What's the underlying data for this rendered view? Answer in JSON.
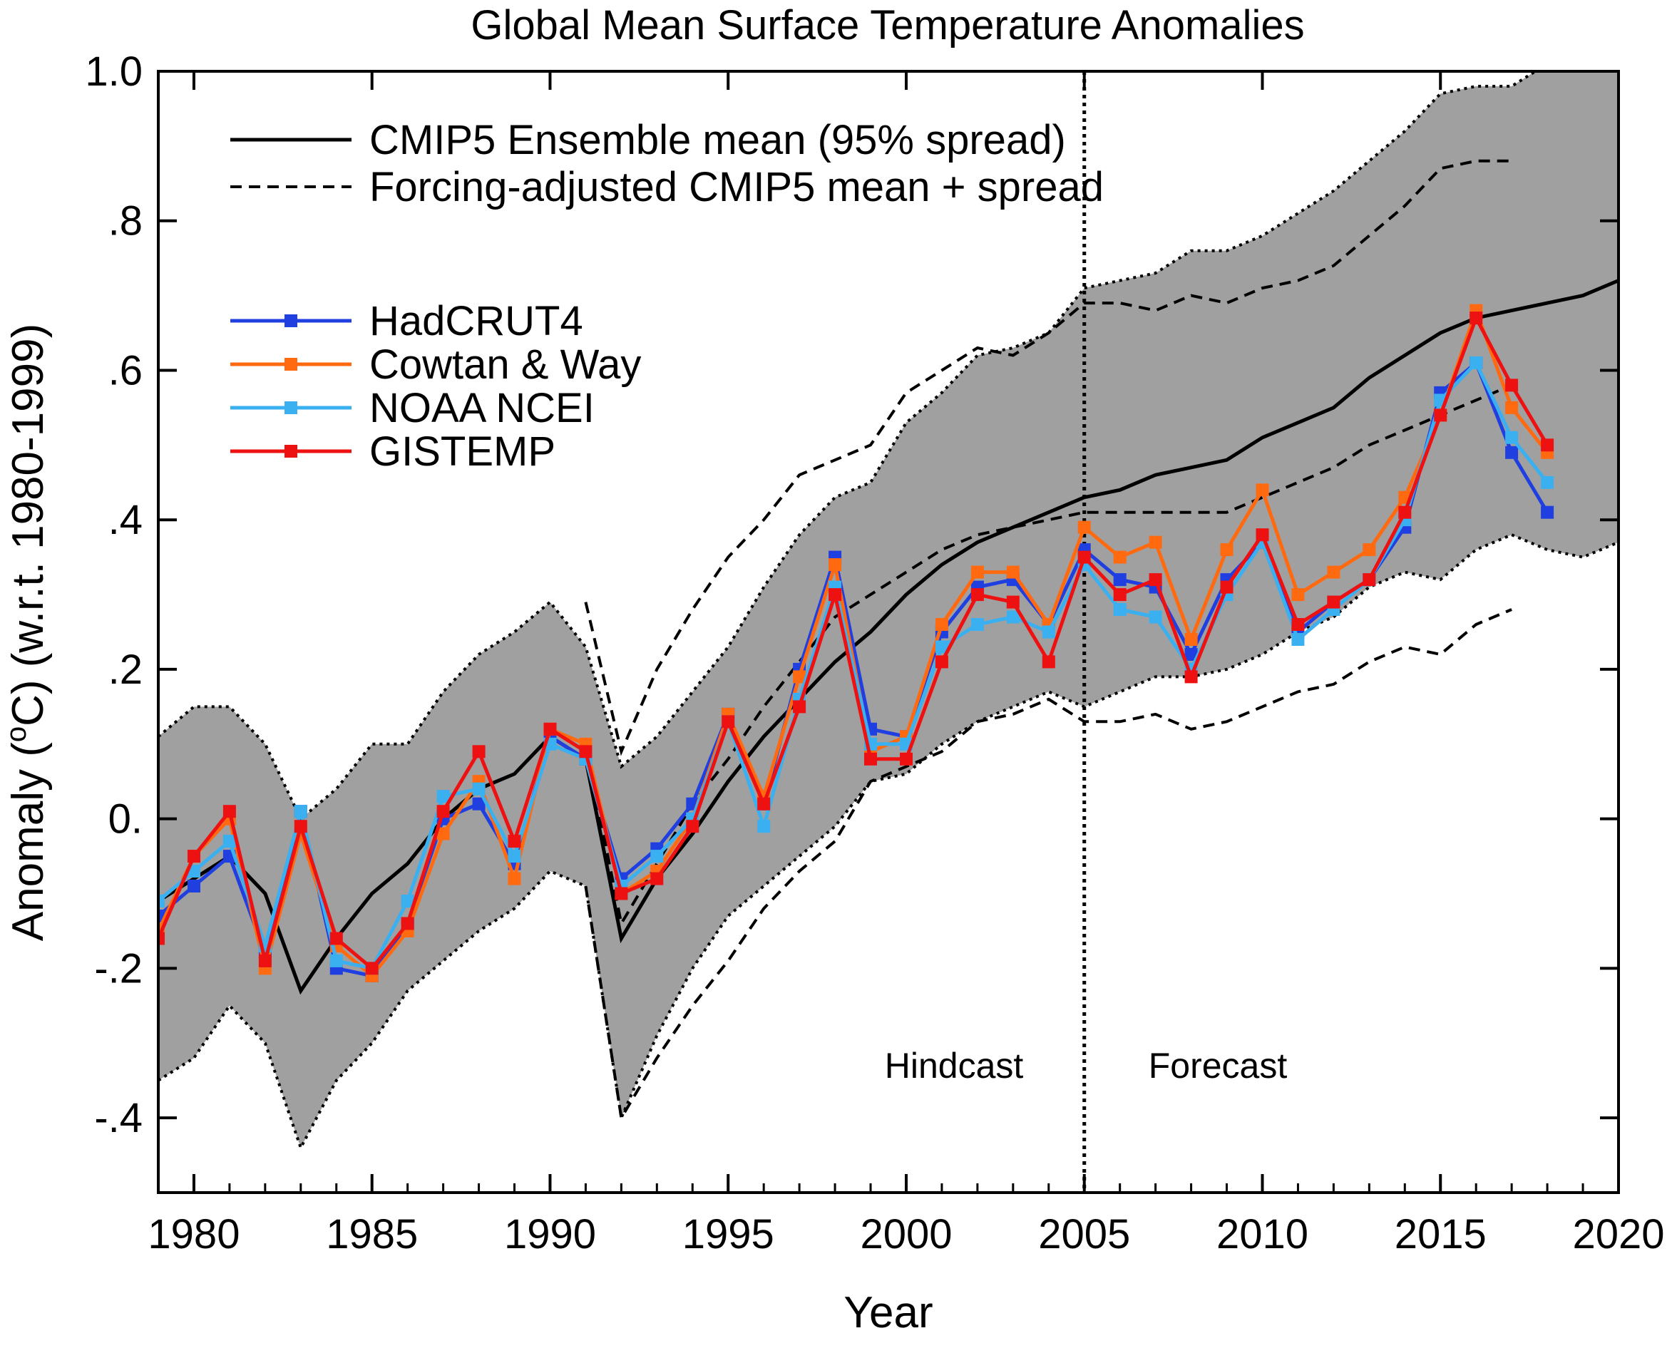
{
  "chart_data": {
    "type": "line",
    "title": "Global Mean Surface Temperature Anomalies",
    "xlabel": "Year",
    "ylabel_main": "Anomaly (",
    "ylabel_sup": "o",
    "ylabel_rest": "C) (w.r.t. 1980-1999)",
    "xlim": [
      1979,
      2020
    ],
    "ylim": [
      -0.5,
      1.0
    ],
    "xticks": [
      1980,
      1985,
      1990,
      1995,
      2000,
      2005,
      2010,
      2015,
      2020
    ],
    "xtick_labels": [
      "1980",
      "1985",
      "1990",
      "1995",
      "2000",
      "2005",
      "2010",
      "2015",
      "2020"
    ],
    "yticks": [
      -0.4,
      -0.2,
      0.0,
      0.2,
      0.4,
      0.6,
      0.8,
      1.0
    ],
    "ytick_labels": [
      "-.4",
      "-.2",
      "0.",
      ".2",
      ".4",
      ".6",
      ".8",
      "1.0"
    ],
    "grid": false,
    "legend_position": "top-left",
    "legend_lines": [
      {
        "label": "CMIP5 Ensemble mean (95% spread)",
        "style": "solid",
        "color": "#000000"
      },
      {
        "label": "Forcing-adjusted CMIP5 mean + spread",
        "style": "dashed",
        "color": "#000000"
      }
    ],
    "annotations": {
      "divider_year": 2005,
      "left_text": "Hindcast",
      "right_text": "Forecast",
      "text_y": -0.33
    },
    "cmip5_band": {
      "fill": "#a0a0a0",
      "x": [
        1979,
        1980,
        1981,
        1982,
        1983,
        1984,
        1985,
        1986,
        1987,
        1988,
        1989,
        1990,
        1991,
        1992,
        1993,
        1994,
        1995,
        1996,
        1997,
        1998,
        1999,
        2000,
        2001,
        2002,
        2003,
        2004,
        2005,
        2006,
        2007,
        2008,
        2009,
        2010,
        2011,
        2012,
        2013,
        2014,
        2015,
        2016,
        2017,
        2018,
        2019,
        2020
      ],
      "upper": [
        0.11,
        0.15,
        0.15,
        0.1,
        0.0,
        0.04,
        0.1,
        0.1,
        0.17,
        0.22,
        0.25,
        0.29,
        0.23,
        0.07,
        0.11,
        0.17,
        0.23,
        0.31,
        0.38,
        0.43,
        0.45,
        0.53,
        0.57,
        0.62,
        0.63,
        0.65,
        0.71,
        0.72,
        0.73,
        0.76,
        0.76,
        0.78,
        0.81,
        0.84,
        0.88,
        0.92,
        0.97,
        0.98,
        0.98,
        1.01,
        1.03,
        1.05
      ],
      "lower": [
        -0.35,
        -0.32,
        -0.25,
        -0.3,
        -0.44,
        -0.35,
        -0.3,
        -0.23,
        -0.19,
        -0.15,
        -0.12,
        -0.07,
        -0.09,
        -0.4,
        -0.29,
        -0.2,
        -0.13,
        -0.09,
        -0.05,
        -0.01,
        0.05,
        0.06,
        0.1,
        0.13,
        0.15,
        0.17,
        0.15,
        0.17,
        0.19,
        0.19,
        0.2,
        0.22,
        0.25,
        0.27,
        0.31,
        0.33,
        0.32,
        0.36,
        0.38,
        0.36,
        0.35,
        0.37
      ]
    },
    "cmip5_mean": {
      "x": [
        1979,
        1980,
        1981,
        1982,
        1983,
        1984,
        1985,
        1986,
        1987,
        1988,
        1989,
        1990,
        1991,
        1992,
        1993,
        1994,
        1995,
        1996,
        1997,
        1998,
        1999,
        2000,
        2001,
        2002,
        2003,
        2004,
        2005,
        2006,
        2007,
        2008,
        2009,
        2010,
        2011,
        2012,
        2013,
        2014,
        2015,
        2016,
        2017,
        2018,
        2019,
        2020
      ],
      "y": [
        -0.11,
        -0.08,
        -0.05,
        -0.1,
        -0.23,
        -0.16,
        -0.1,
        -0.06,
        0.0,
        0.04,
        0.06,
        0.11,
        0.08,
        -0.16,
        -0.08,
        -0.02,
        0.05,
        0.11,
        0.16,
        0.21,
        0.25,
        0.3,
        0.34,
        0.37,
        0.39,
        0.41,
        0.43,
        0.44,
        0.46,
        0.47,
        0.48,
        0.51,
        0.53,
        0.55,
        0.59,
        0.62,
        0.65,
        0.67,
        0.68,
        0.69,
        0.7,
        0.72
      ]
    },
    "forcing_adjusted": {
      "x": [
        1991,
        1992,
        1993,
        1994,
        1995,
        1996,
        1997,
        1998,
        1999,
        2000,
        2001,
        2002,
        2003,
        2004,
        2005,
        2006,
        2007,
        2008,
        2009,
        2010,
        2011,
        2012,
        2013,
        2014,
        2015,
        2016,
        2017
      ],
      "mean": [
        0.1,
        -0.14,
        -0.06,
        0.02,
        0.08,
        0.15,
        0.21,
        0.27,
        0.3,
        0.33,
        0.36,
        0.38,
        0.39,
        0.4,
        0.41,
        0.41,
        0.41,
        0.41,
        0.41,
        0.43,
        0.45,
        0.47,
        0.5,
        0.52,
        0.54,
        0.56,
        0.58
      ],
      "upper": [
        0.29,
        0.09,
        0.2,
        0.28,
        0.35,
        0.4,
        0.46,
        0.48,
        0.5,
        0.57,
        0.6,
        0.63,
        0.62,
        0.65,
        0.69,
        0.69,
        0.68,
        0.7,
        0.69,
        0.71,
        0.72,
        0.74,
        0.78,
        0.82,
        0.87,
        0.88,
        0.88
      ],
      "lower": [
        -0.09,
        -0.4,
        -0.32,
        -0.25,
        -0.19,
        -0.12,
        -0.07,
        -0.03,
        0.05,
        0.07,
        0.09,
        0.13,
        0.14,
        0.16,
        0.13,
        0.13,
        0.14,
        0.12,
        0.13,
        0.15,
        0.17,
        0.18,
        0.21,
        0.23,
        0.22,
        0.26,
        0.28
      ]
    },
    "x": [
      1979,
      1980,
      1981,
      1982,
      1983,
      1984,
      1985,
      1986,
      1987,
      1988,
      1989,
      1990,
      1991,
      1992,
      1993,
      1994,
      1995,
      1996,
      1997,
      1998,
      1999,
      2000,
      2001,
      2002,
      2003,
      2004,
      2005,
      2006,
      2007,
      2008,
      2009,
      2010,
      2011,
      2012,
      2013,
      2014,
      2015,
      2016,
      2017,
      2018
    ],
    "series": [
      {
        "name": "HadCRUT4",
        "color": "#1f3fe0",
        "values": [
          -0.13,
          -0.09,
          -0.05,
          -0.18,
          0.01,
          -0.2,
          -0.21,
          -0.14,
          0.0,
          0.02,
          -0.06,
          0.11,
          0.08,
          -0.08,
          -0.04,
          0.02,
          0.14,
          0.02,
          0.2,
          0.35,
          0.12,
          0.11,
          0.25,
          0.31,
          0.32,
          0.26,
          0.36,
          0.32,
          0.31,
          0.22,
          0.32,
          0.37,
          0.25,
          0.29,
          0.32,
          0.39,
          0.57,
          0.61,
          0.49,
          0.41
        ]
      },
      {
        "name": "Cowtan & Way",
        "color": "#ff6a10",
        "values": [
          -0.15,
          -0.05,
          0.0,
          -0.2,
          -0.02,
          -0.17,
          -0.21,
          -0.15,
          -0.02,
          0.05,
          -0.08,
          0.12,
          0.1,
          -0.1,
          -0.07,
          0.0,
          0.14,
          0.03,
          0.19,
          0.34,
          0.09,
          0.11,
          0.26,
          0.33,
          0.33,
          0.26,
          0.39,
          0.35,
          0.37,
          0.24,
          0.36,
          0.44,
          0.3,
          0.33,
          0.36,
          0.43,
          0.54,
          0.68,
          0.55,
          0.49
        ]
      },
      {
        "name": "NOAA NCEI",
        "color": "#3ab0f0",
        "values": [
          -0.11,
          -0.07,
          -0.03,
          -0.17,
          0.01,
          -0.19,
          -0.2,
          -0.11,
          0.03,
          0.04,
          -0.05,
          0.1,
          0.08,
          -0.09,
          -0.05,
          0.0,
          0.13,
          -0.01,
          0.16,
          0.31,
          0.1,
          0.1,
          0.23,
          0.26,
          0.27,
          0.25,
          0.34,
          0.28,
          0.27,
          0.2,
          0.3,
          0.37,
          0.24,
          0.28,
          0.32,
          0.4,
          0.56,
          0.61,
          0.51,
          0.45
        ]
      },
      {
        "name": "GISTEMP",
        "color": "#ee1111",
        "values": [
          -0.16,
          -0.05,
          0.01,
          -0.19,
          -0.01,
          -0.16,
          -0.2,
          -0.14,
          0.01,
          0.09,
          -0.03,
          0.12,
          0.09,
          -0.1,
          -0.08,
          -0.01,
          0.13,
          0.02,
          0.15,
          0.3,
          0.08,
          0.08,
          0.21,
          0.3,
          0.29,
          0.21,
          0.35,
          0.3,
          0.32,
          0.19,
          0.31,
          0.38,
          0.26,
          0.29,
          0.32,
          0.41,
          0.54,
          0.67,
          0.58,
          0.5
        ]
      }
    ]
  }
}
